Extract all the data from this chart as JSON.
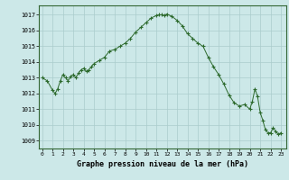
{
  "x": [
    0,
    0.5,
    1,
    1.25,
    1.5,
    1.75,
    2,
    2.25,
    2.5,
    2.75,
    3,
    3.25,
    3.5,
    3.75,
    4,
    4.25,
    4.5,
    4.75,
    5,
    5.5,
    6,
    6.5,
    7,
    7.5,
    8,
    8.5,
    9,
    9.5,
    10,
    10.5,
    11,
    11.25,
    11.5,
    11.75,
    12,
    12.5,
    13,
    13.5,
    14,
    14.5,
    15,
    15.5,
    16,
    16.5,
    17,
    17.5,
    18,
    18.5,
    19,
    19.5,
    20,
    20.25,
    20.5,
    20.75,
    21,
    21.25,
    21.5,
    21.75,
    22,
    22.25,
    22.5,
    22.75,
    23
  ],
  "y": [
    1013.0,
    1012.8,
    1012.2,
    1012.0,
    1012.3,
    1012.8,
    1013.2,
    1013.0,
    1012.8,
    1013.1,
    1013.2,
    1013.0,
    1013.3,
    1013.5,
    1013.6,
    1013.4,
    1013.5,
    1013.7,
    1013.9,
    1014.1,
    1014.3,
    1014.7,
    1014.8,
    1015.0,
    1015.2,
    1015.5,
    1015.9,
    1016.2,
    1016.5,
    1016.8,
    1016.95,
    1017.0,
    1017.0,
    1016.95,
    1017.05,
    1016.9,
    1016.65,
    1016.3,
    1015.8,
    1015.5,
    1015.2,
    1015.0,
    1014.3,
    1013.7,
    1013.2,
    1012.6,
    1011.9,
    1011.4,
    1011.2,
    1011.3,
    1011.0,
    1011.5,
    1012.3,
    1011.8,
    1010.8,
    1010.3,
    1009.7,
    1009.5,
    1009.5,
    1009.8,
    1009.6,
    1009.4,
    1009.5
  ],
  "line_color": "#2d6a2d",
  "marker_color": "#2d6a2d",
  "bg_color": "#cce8e8",
  "grid_color": "#aacccc",
  "title": "Graphe pression niveau de la mer (hPa)",
  "ylim_min": 1008.5,
  "ylim_max": 1017.6,
  "xlim_min": -0.3,
  "xlim_max": 23.5,
  "yticks": [
    1009,
    1010,
    1011,
    1012,
    1013,
    1014,
    1015,
    1016,
    1017
  ],
  "xticks": [
    0,
    1,
    2,
    3,
    4,
    5,
    6,
    7,
    8,
    9,
    10,
    11,
    12,
    13,
    14,
    15,
    16,
    17,
    18,
    19,
    20,
    21,
    22,
    23
  ]
}
